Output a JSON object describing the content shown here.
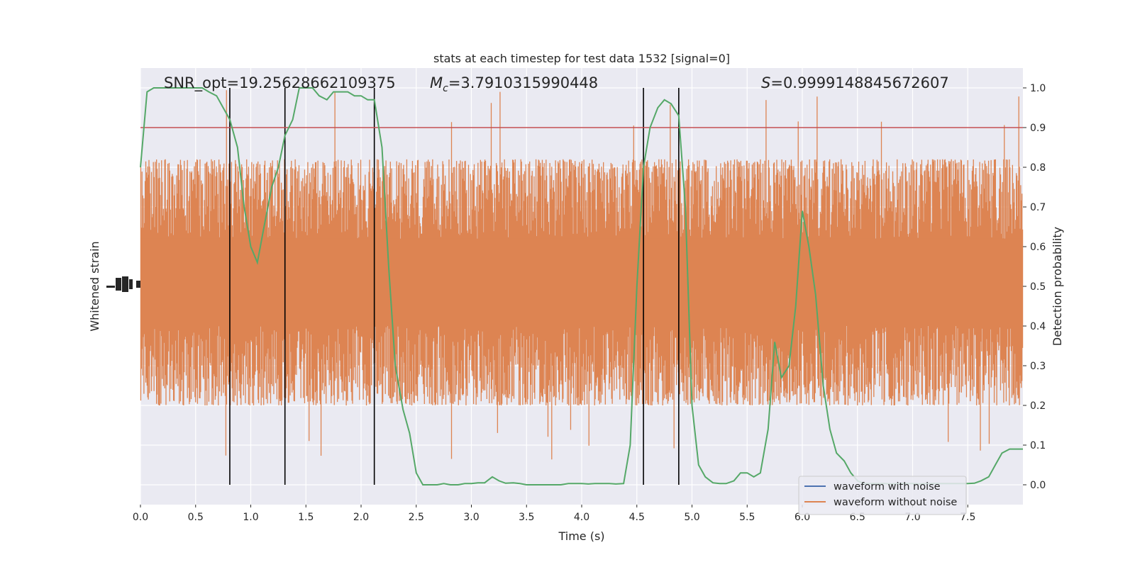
{
  "chart_data": {
    "type": "line",
    "title": "stats at each timestep for test data 1532 [signal=0]",
    "xlabel": "Time (s)",
    "ylabel_left": "Whitened strain",
    "ylabel_right": "Detection probability",
    "xlim": [
      0,
      8
    ],
    "ylim_right": [
      -0.05,
      1.05
    ],
    "x_ticks": [
      "0.0",
      "0.5",
      "1.0",
      "1.5",
      "2.0",
      "2.5",
      "3.0",
      "3.5",
      "4.0",
      "4.5",
      "5.0",
      "5.5",
      "6.0",
      "6.5",
      "7.0",
      "7.5"
    ],
    "y_ticks_right": [
      "0.0",
      "0.1",
      "0.2",
      "0.3",
      "0.4",
      "0.5",
      "0.6",
      "0.7",
      "0.8",
      "0.9",
      "1.0"
    ],
    "grid": true,
    "legend_position": "lower right",
    "annotations": {
      "snr": "SNR_opt=19.25628662109375",
      "mc_symbol": "M",
      "mc_sub": "c",
      "mc_value": "=3.7910315990448",
      "s_symbol": "S",
      "s_value": "=0.9999148845672607"
    },
    "threshold": 0.9,
    "detection_lines_x": [
      0.81,
      1.31,
      2.12,
      4.56,
      4.88
    ],
    "series": [
      {
        "name": "waveform with noise",
        "color": "#4c72b0",
        "values": []
      },
      {
        "name": "waveform without noise",
        "color": "#dd8452",
        "noise_amplitude_band": [
          0.2,
          0.82
        ]
      },
      {
        "color": "#55a868",
        "x": [
          0.0,
          0.06,
          0.12,
          0.19,
          0.25,
          0.31,
          0.38,
          0.44,
          0.5,
          0.56,
          0.62,
          0.69,
          0.75,
          0.81,
          0.88,
          0.94,
          1.0,
          1.06,
          1.12,
          1.19,
          1.25,
          1.31,
          1.38,
          1.44,
          1.5,
          1.56,
          1.62,
          1.69,
          1.75,
          1.81,
          1.88,
          1.94,
          2.0,
          2.06,
          2.12,
          2.19,
          2.25,
          2.31,
          2.38,
          2.44,
          2.5,
          2.56,
          2.62,
          2.69,
          2.75,
          2.81,
          2.88,
          2.94,
          3.0,
          3.06,
          3.12,
          3.19,
          3.25,
          3.31,
          3.38,
          3.44,
          3.5,
          3.56,
          3.62,
          3.69,
          3.75,
          3.81,
          3.88,
          3.94,
          4.0,
          4.06,
          4.12,
          4.19,
          4.25,
          4.31,
          4.38,
          4.44,
          4.5,
          4.56,
          4.62,
          4.69,
          4.75,
          4.81,
          4.88,
          4.94,
          5.0,
          5.06,
          5.12,
          5.19,
          5.25,
          5.31,
          5.38,
          5.44,
          5.5,
          5.56,
          5.62,
          5.69,
          5.75,
          5.81,
          5.88,
          5.94,
          6.0,
          6.06,
          6.12,
          6.19,
          6.25,
          6.31,
          6.38,
          6.44,
          6.5,
          6.56,
          6.62,
          6.69,
          6.75,
          6.81,
          6.88,
          6.94,
          7.0,
          7.06,
          7.12,
          7.19,
          7.25,
          7.31,
          7.38,
          7.44,
          7.5,
          7.56,
          7.62,
          7.69,
          7.75,
          7.81,
          7.88,
          7.94,
          8.0
        ],
        "values": [
          0.8,
          0.99,
          1.0,
          1.0,
          1.0,
          1.0,
          1.0,
          1.0,
          1.0,
          1.0,
          0.99,
          0.98,
          0.95,
          0.92,
          0.85,
          0.7,
          0.6,
          0.56,
          0.65,
          0.75,
          0.8,
          0.88,
          0.92,
          1.0,
          1.0,
          1.0,
          0.98,
          0.97,
          0.99,
          0.99,
          0.99,
          0.98,
          0.98,
          0.97,
          0.97,
          0.85,
          0.55,
          0.3,
          0.19,
          0.13,
          0.03,
          0.0,
          0.0,
          0.0,
          0.003,
          0.0,
          0.0,
          0.003,
          0.003,
          0.005,
          0.005,
          0.02,
          0.01,
          0.004,
          0.005,
          0.003,
          0.0,
          0.0,
          0.0,
          0.0,
          0.0,
          0.0,
          0.003,
          0.003,
          0.003,
          0.002,
          0.003,
          0.003,
          0.003,
          0.002,
          0.003,
          0.1,
          0.5,
          0.8,
          0.9,
          0.95,
          0.97,
          0.96,
          0.93,
          0.7,
          0.2,
          0.05,
          0.02,
          0.005,
          0.003,
          0.003,
          0.01,
          0.03,
          0.03,
          0.02,
          0.03,
          0.14,
          0.36,
          0.27,
          0.3,
          0.45,
          0.69,
          0.6,
          0.48,
          0.25,
          0.14,
          0.08,
          0.06,
          0.03,
          0.01,
          0.003,
          0.003,
          0.003,
          0.003,
          0.002,
          0.003,
          0.003,
          0.003,
          0.002,
          0.003,
          0.003,
          0.003,
          0.003,
          0.003,
          0.003,
          0.003,
          0.004,
          0.01,
          0.02,
          0.05,
          0.08,
          0.09,
          0.09,
          0.09
        ]
      }
    ]
  }
}
